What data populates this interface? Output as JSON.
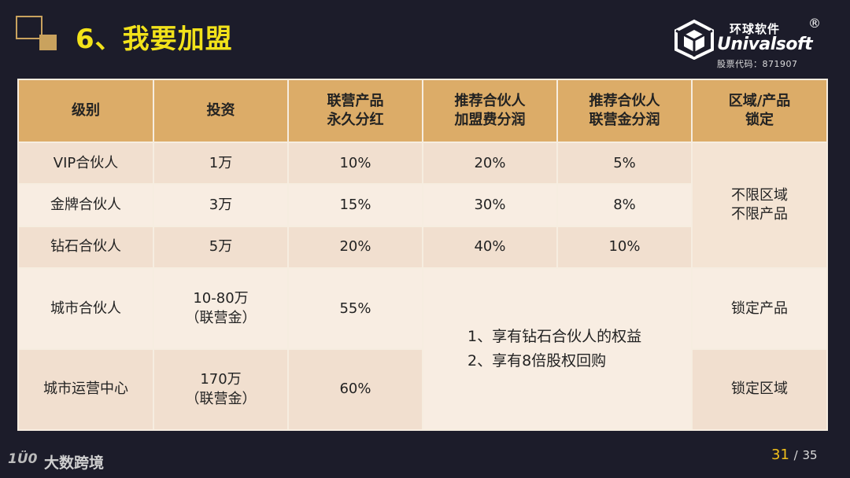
{
  "title": "6、我要加盟",
  "logo": {
    "name_cn": "环球软件",
    "name_en": "Univalsoft",
    "registered_mark": "®",
    "stock_code": "股票代码：871907"
  },
  "table": {
    "headers": [
      [
        "级别"
      ],
      [
        "投资"
      ],
      [
        "联营产品",
        "永久分红"
      ],
      [
        "推荐合伙人",
        "加盟费分润"
      ],
      [
        "推荐合伙人",
        "联营金分润"
      ],
      [
        "区域/产品",
        "锁定"
      ]
    ],
    "rows": [
      {
        "level": "VIP合伙人",
        "investment": [
          "1万"
        ],
        "dividend": "10%",
        "fee_share": "20%",
        "fund_share": "5%"
      },
      {
        "level": "金牌合伙人",
        "investment": [
          "3万"
        ],
        "dividend": "15%",
        "fee_share": "30%",
        "fund_share": "8%"
      },
      {
        "level": "钻石合伙人",
        "investment": [
          "5万"
        ],
        "dividend": "20%",
        "fee_share": "40%",
        "fund_share": "10%"
      },
      {
        "level": "城市合伙人",
        "investment": [
          "10-80万",
          "（联营金）"
        ],
        "dividend": "55%"
      },
      {
        "level": "城市运营中心",
        "investment": [
          "170万",
          "（联营金）"
        ],
        "dividend": "60%"
      }
    ],
    "region_lock_top": [
      "不限区域",
      "不限产品"
    ],
    "region_lock_city_partner": "锁定产品",
    "region_lock_city_center": "锁定区域",
    "benefit_notes": [
      "1、享有钻石合伙人的权益",
      "2、享有8倍股权回购"
    ]
  },
  "footer": {
    "brand_mark": "1Ü0",
    "brand_text": "大数跨境"
  },
  "pager": {
    "current": "31",
    "separator": "/",
    "total": "35"
  }
}
